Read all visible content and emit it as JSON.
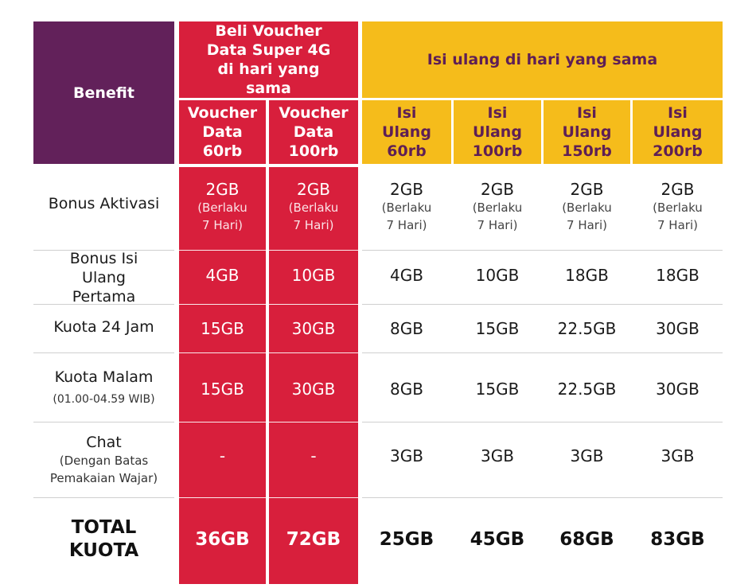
{
  "header": {
    "benefit": "Benefit",
    "group_red": "Beli Voucher Data Super 4G di hari yang sama",
    "group_yellow": "Isi ulang di hari yang sama",
    "columns": [
      "Voucher Data 60rb",
      "Voucher Data 100rb",
      "Isi Ulang 60rb",
      "Isi Ulang 100rb",
      "Isi Ulang 150rb",
      "Isi Ulang 200rb"
    ]
  },
  "rows": [
    {
      "label": "Bonus Aktivasi",
      "sub": "",
      "values": [
        "2GB",
        "2GB",
        "2GB",
        "2GB",
        "2GB",
        "2GB"
      ],
      "notes": [
        "(Berlaku 7 Hari)",
        "(Berlaku 7 Hari)",
        "(Berlaku 7 Hari)",
        "(Berlaku 7 Hari)",
        "(Berlaku 7 Hari)",
        "(Berlaku 7 Hari)"
      ]
    },
    {
      "label": "Bonus Isi Ulang Pertama",
      "sub": "",
      "values": [
        "4GB",
        "10GB",
        "4GB",
        "10GB",
        "18GB",
        "18GB"
      ]
    },
    {
      "label": "Kuota 24 Jam",
      "sub": "",
      "values": [
        "15GB",
        "30GB",
        "8GB",
        "15GB",
        "22.5GB",
        "30GB"
      ]
    },
    {
      "label": "Kuota Malam",
      "sub": "(01.00-04.59 WIB)",
      "values": [
        "15GB",
        "30GB",
        "8GB",
        "15GB",
        "22.5GB",
        "30GB"
      ]
    },
    {
      "label": "Chat",
      "sub": "(Dengan Batas Pemakaian Wajar)",
      "values": [
        "-",
        "-",
        "3GB",
        "3GB",
        "3GB",
        "3GB"
      ]
    }
  ],
  "total": {
    "label": "TOTAL KUOTA",
    "values": [
      "36GB",
      "72GB",
      "25GB",
      "45GB",
      "68GB",
      "83GB"
    ]
  },
  "colors": {
    "purple": "#62215a",
    "red": "#d81f3c",
    "yellow": "#f5bc1b"
  }
}
